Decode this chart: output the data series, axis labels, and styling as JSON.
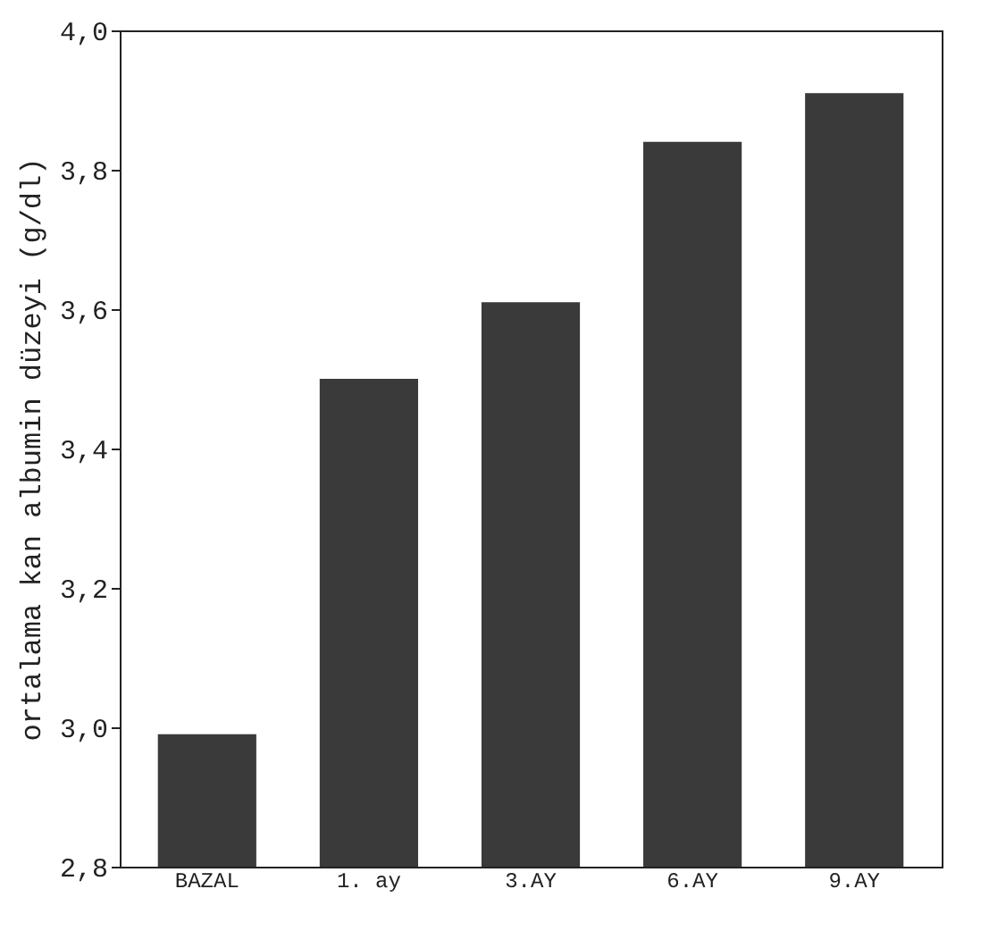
{
  "chart_data": {
    "type": "bar",
    "ylabel": "ortalama kan albumin düzeyi (g/dl)",
    "categories": [
      "BAZAL",
      "1. ay",
      "3.AY",
      "6.AY",
      "9.AY"
    ],
    "values": [
      2.99,
      3.5,
      3.61,
      3.84,
      3.91
    ],
    "color": "#3a3a3a",
    "ylim": [
      2.8,
      4.0
    ],
    "yticks": [
      {
        "value": 2.8,
        "label": "2,8"
      },
      {
        "value": 3.0,
        "label": "3,0"
      },
      {
        "value": 3.2,
        "label": "3,2"
      },
      {
        "value": 3.4,
        "label": "3,4"
      },
      {
        "value": 3.6,
        "label": "3,6"
      },
      {
        "value": 3.8,
        "label": "3,8"
      },
      {
        "value": 4.0,
        "label": "4,0"
      }
    ]
  }
}
